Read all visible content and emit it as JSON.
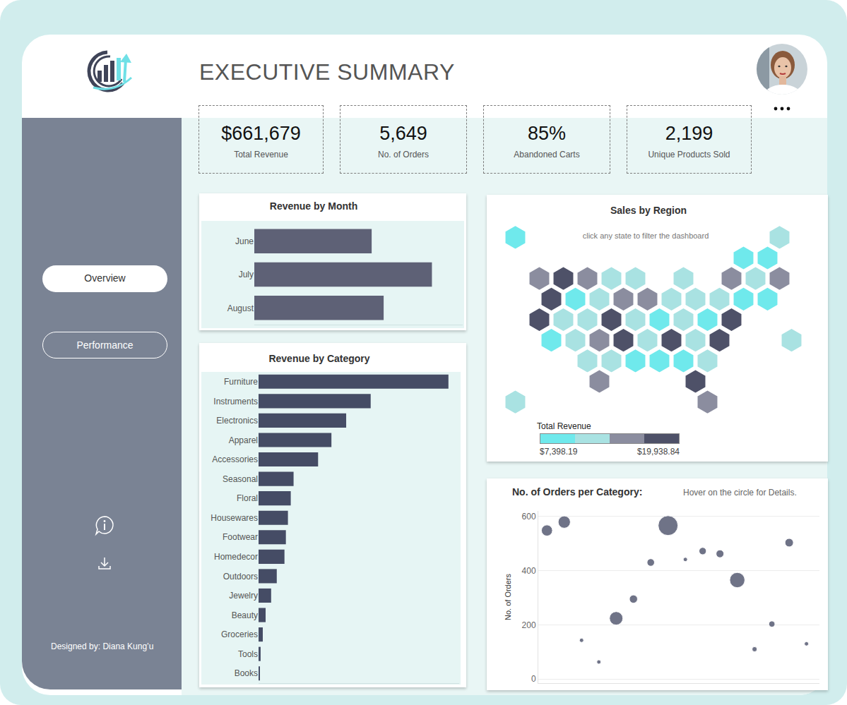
{
  "header": {
    "title": "EXECUTIVE SUMMARY"
  },
  "kpis": [
    {
      "value": "$661,679",
      "label": "Total Revenue"
    },
    {
      "value": "5,649",
      "label": "No. of Orders"
    },
    {
      "value": "85%",
      "label": "Abandoned Carts"
    },
    {
      "value": "2,199",
      "label": "Unique Products Sold"
    }
  ],
  "sidebar": {
    "nav": [
      {
        "label": "Overview",
        "active": true
      },
      {
        "label": "Performance",
        "active": false
      }
    ],
    "footer": "Designed by: Diana Kung’u"
  },
  "chart_data": [
    {
      "type": "bar",
      "title": "Revenue by Month",
      "orientation": "horizontal",
      "categories": [
        "June",
        "July",
        "August"
      ],
      "values": [
        183000,
        277000,
        201700
      ],
      "color": "#5e6176",
      "xlim": [
        0,
        325000
      ],
      "grid": false,
      "tick_labels": "y"
    },
    {
      "type": "bar",
      "title": "Revenue by Category",
      "orientation": "horizontal",
      "categories": [
        "Furniture",
        "Instruments",
        "Electronics",
        "Apparel",
        "Accessories",
        "Seasonal",
        "Floral",
        "Housewares",
        "Footwear",
        "Homedecor",
        "Outdoors",
        "Jewelry",
        "Beauty",
        "Groceries",
        "Tools",
        "Books"
      ],
      "values": [
        175100,
        103400,
        80800,
        67200,
        54900,
        32300,
        29700,
        27100,
        25200,
        23900,
        16800,
        11600,
        6500,
        3900,
        1900,
        1300
      ],
      "color": "#454c65",
      "xlim": [
        0,
        185000
      ],
      "grid": false,
      "tick_labels": "y"
    },
    {
      "type": "tilemap",
      "title": "Sales by Region",
      "subtitle": "click any state to filter the dashboard",
      "tiles": [
        {
          "col": 0,
          "row": 0,
          "value": 7398.19
        },
        {
          "col": 22,
          "row": 0,
          "value": 11850.4
        },
        {
          "col": 19,
          "row": 1,
          "value": 9120.55
        },
        {
          "col": 21,
          "row": 1,
          "value": 8640.2
        },
        {
          "col": 2,
          "row": 2,
          "value": 15230.1
        },
        {
          "col": 4,
          "row": 2,
          "value": 18420.7
        },
        {
          "col": 6,
          "row": 2,
          "value": 14870.3
        },
        {
          "col": 8,
          "row": 2,
          "value": 12240.6
        },
        {
          "col": 10,
          "row": 2,
          "value": 11580.9
        },
        {
          "col": 14,
          "row": 2,
          "value": 12910.2
        },
        {
          "col": 18,
          "row": 2,
          "value": 15690.4
        },
        {
          "col": 20,
          "row": 2,
          "value": 12380.5
        },
        {
          "col": 22,
          "row": 2,
          "value": 14420.8
        },
        {
          "col": 3,
          "row": 3,
          "value": 19938.84
        },
        {
          "col": 5,
          "row": 3,
          "value": 9760.3
        },
        {
          "col": 7,
          "row": 3,
          "value": 11240.7
        },
        {
          "col": 9,
          "row": 3,
          "value": 15980.2
        },
        {
          "col": 11,
          "row": 3,
          "value": 16120.6
        },
        {
          "col": 13,
          "row": 3,
          "value": 12650.1
        },
        {
          "col": 15,
          "row": 3,
          "value": 11920.3
        },
        {
          "col": 17,
          "row": 3,
          "value": 13110.4
        },
        {
          "col": 19,
          "row": 3,
          "value": 9930.6
        },
        {
          "col": 21,
          "row": 3,
          "value": 8870.2
        },
        {
          "col": 2,
          "row": 4,
          "value": 18950.3
        },
        {
          "col": 4,
          "row": 4,
          "value": 12130.8
        },
        {
          "col": 6,
          "row": 4,
          "value": 11470.2
        },
        {
          "col": 8,
          "row": 4,
          "value": 17620.4
        },
        {
          "col": 10,
          "row": 4,
          "value": 12790.5
        },
        {
          "col": 12,
          "row": 4,
          "value": 9540.1
        },
        {
          "col": 14,
          "row": 4,
          "value": 11760.9
        },
        {
          "col": 16,
          "row": 4,
          "value": 10210.3
        },
        {
          "col": 18,
          "row": 4,
          "value": 17980.6
        },
        {
          "col": 3,
          "row": 5,
          "value": 9310.4
        },
        {
          "col": 5,
          "row": 5,
          "value": 12560.2
        },
        {
          "col": 7,
          "row": 5,
          "value": 15410.7
        },
        {
          "col": 9,
          "row": 5,
          "value": 18210.5
        },
        {
          "col": 11,
          "row": 5,
          "value": 11390.6
        },
        {
          "col": 13,
          "row": 5,
          "value": 17350.9
        },
        {
          "col": 15,
          "row": 5,
          "value": 12870.3
        },
        {
          "col": 17,
          "row": 5,
          "value": 18740.2
        },
        {
          "col": 23,
          "row": 5,
          "value": 11680.4
        },
        {
          "col": 6,
          "row": 6,
          "value": 12020.7
        },
        {
          "col": 8,
          "row": 6,
          "value": 11330.5
        },
        {
          "col": 10,
          "row": 6,
          "value": 9870.2
        },
        {
          "col": 12,
          "row": 6,
          "value": 8990.6
        },
        {
          "col": 14,
          "row": 6,
          "value": 10340.8
        },
        {
          "col": 16,
          "row": 6,
          "value": 12460.3
        },
        {
          "col": 7,
          "row": 7,
          "value": 14980.6
        },
        {
          "col": 15,
          "row": 7,
          "value": 17890.1
        },
        {
          "col": 0,
          "row": 8,
          "value": 11150.9
        },
        {
          "col": 16,
          "row": 8,
          "value": 15560.2
        }
      ],
      "colorbar": {
        "title": "Total Revenue",
        "range": [
          7398.19,
          19938.84
        ],
        "colors": [
          "#6fe9ec",
          "#a9e2e2",
          "#8b8d9f",
          "#4e5168"
        ],
        "ticks": [
          {
            "value": 7398.19,
            "label": "$7,398.19"
          },
          {
            "value": 19938.84,
            "label": "$19,938.84"
          }
        ]
      }
    },
    {
      "type": "bubble",
      "title": "No. of Orders per Category:",
      "subtitle": "Hover on the circle for Details.",
      "y_label": "No. of Orders",
      "x": [
        1,
        2,
        3,
        4,
        5,
        6,
        7,
        8,
        9,
        10,
        11,
        12,
        13,
        14,
        15,
        16
      ],
      "values": [
        548,
        579,
        143,
        63,
        224,
        295,
        430,
        566,
        441,
        472,
        462,
        365,
        110,
        203,
        503,
        130
      ],
      "sizes": [
        54900,
        67200,
        6500,
        1300,
        80800,
        29700,
        25200,
        175100,
        3900,
        23900,
        27100,
        103400,
        11600,
        16800,
        32300,
        1900
      ],
      "color": "#60647b",
      "marker": "circle",
      "xlim": [
        0.5,
        16.75
      ],
      "ylim": [
        -15,
        620
      ],
      "yticks": [
        0,
        200,
        400,
        600
      ],
      "grid": true,
      "tick_labels": "y"
    }
  ]
}
